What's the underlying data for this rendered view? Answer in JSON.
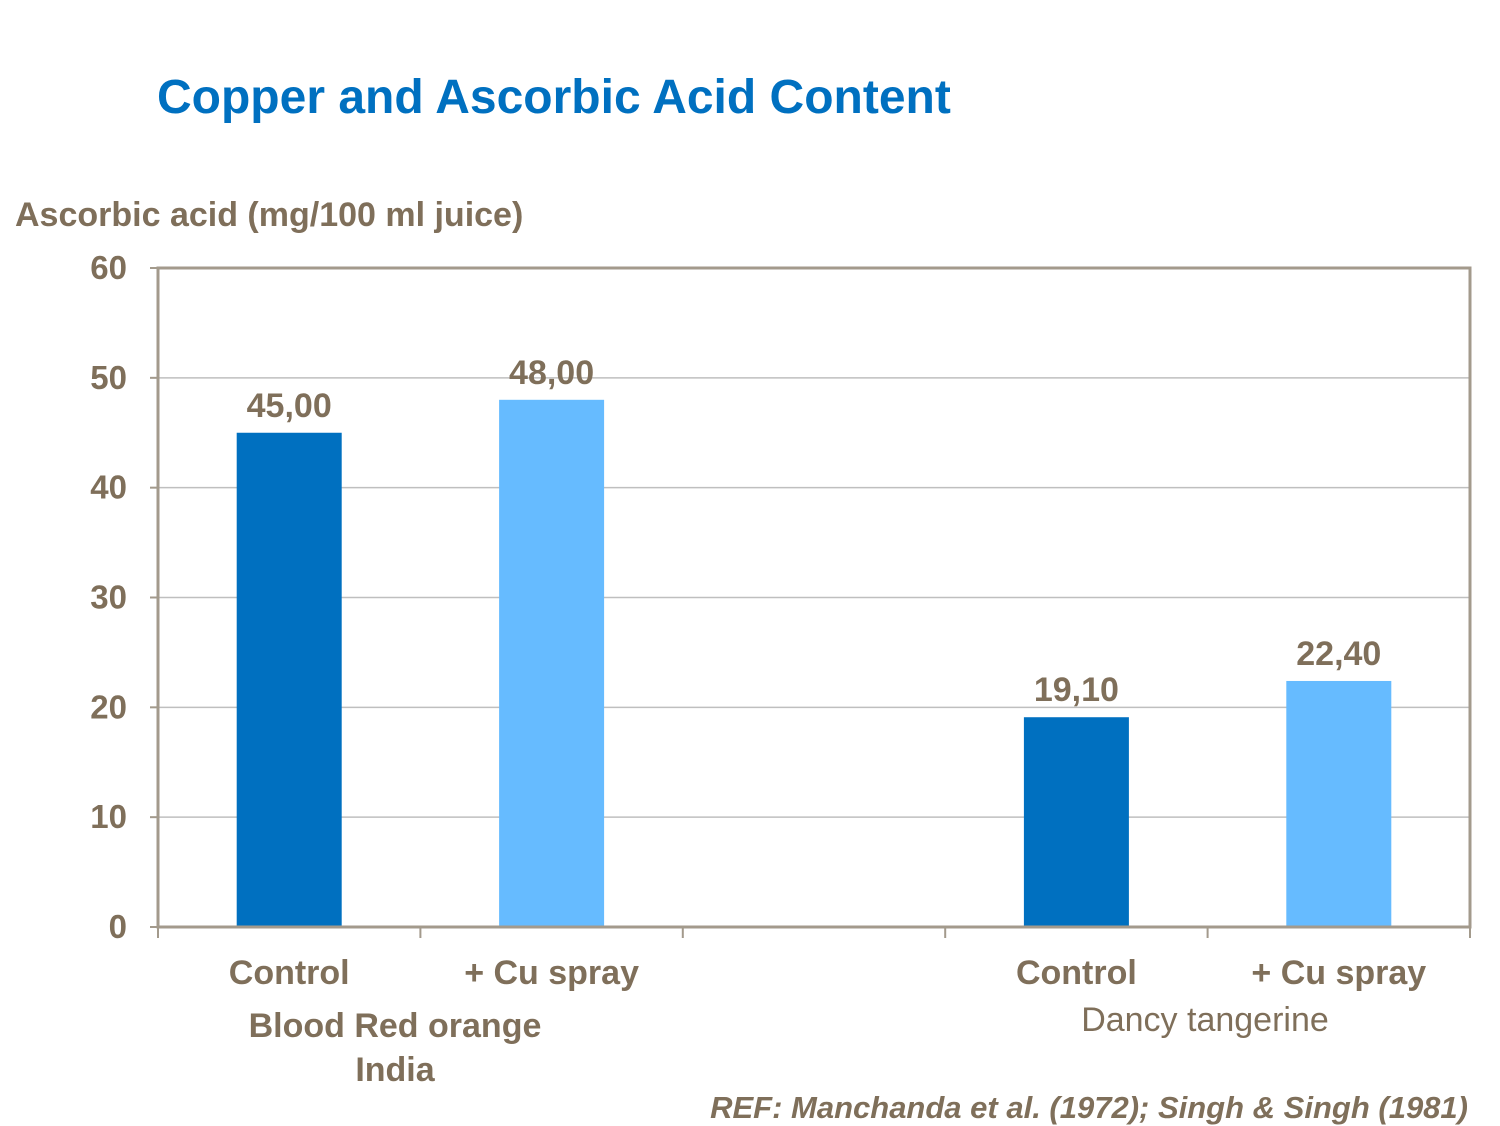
{
  "page": {
    "title": "Copper and Ascorbic Acid Content"
  },
  "chart_data": {
    "type": "bar",
    "ylabel": "Ascorbic acid (mg/100 ml juice)",
    "ylim": [
      0,
      60
    ],
    "yticks": [
      0,
      10,
      20,
      30,
      40,
      50,
      60
    ],
    "grid": true,
    "categories": [
      "Control",
      "+ Cu spray",
      "",
      "Control",
      "+ Cu spray"
    ],
    "values": [
      45.0,
      48.0,
      null,
      19.1,
      22.4
    ],
    "data_labels": [
      "45,00",
      "48,00",
      "",
      "19,10",
      "22,40"
    ],
    "bar_colors": [
      "#0070C0",
      "#66BBFF",
      "",
      "#0070C0",
      "#66BBFF"
    ],
    "group_labels": [
      {
        "lines": [
          "Blood Red orange",
          "India"
        ]
      },
      {
        "lines": [
          "Dancy tangerine"
        ]
      }
    ],
    "axis_color": "#A39A8C",
    "grid_color": "#BFBFBF",
    "text_color": "#7F6F5A"
  },
  "footer": {
    "reference": "REF: Manchanda et al. (1972); Singh & Singh (1981)"
  }
}
